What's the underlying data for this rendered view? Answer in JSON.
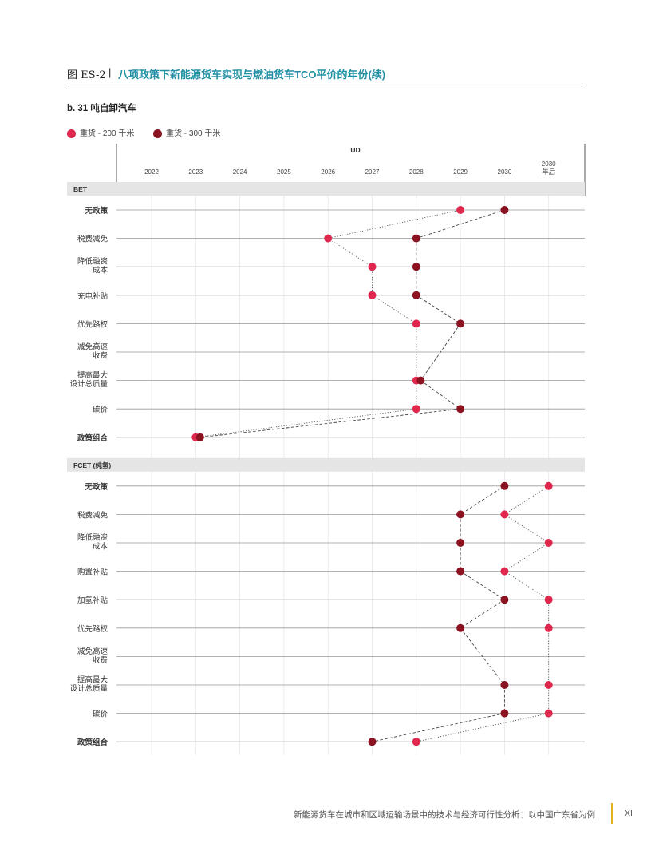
{
  "figure": {
    "label": "图 ES-2",
    "separator": "|",
    "title": "八项政策下新能源货车实现与燃油货车TCO平价的年份(续)"
  },
  "footer": {
    "text": "新能源货车在城市和区域运输场景中的技术与经济可行性分析：以中国广东省为例",
    "page": "XI"
  },
  "colors": {
    "series_200": "#e0284f",
    "series_300": "#8b1220",
    "section_band": "#e5e5e5",
    "title": "#1f8fa3",
    "footer_accent": "#e3b21c"
  },
  "chart_data": {
    "type": "scatter",
    "subtitle": "b. 31 吨自卸汽车",
    "x_axis_title": "UD",
    "x_categories": [
      "2022",
      "2023",
      "2024",
      "2025",
      "2026",
      "2027",
      "2028",
      "2029",
      "2030",
      "2030 年后"
    ],
    "legend": [
      {
        "name": "重货 - 200 千米",
        "color": "#e0284f"
      },
      {
        "name": "重货 - 300 千米",
        "color": "#8b1220"
      }
    ],
    "legend_placement": "top-left",
    "sections": [
      {
        "name": "BET",
        "rows": [
          {
            "label": [
              "无政策"
            ],
            "bold": true,
            "s200": 2029,
            "s300": 2030
          },
          {
            "label": [
              "税费减免"
            ],
            "bold": false,
            "s200": 2026,
            "s300": 2028
          },
          {
            "label": [
              "降低融资",
              "成本"
            ],
            "bold": false,
            "s200": 2027,
            "s300": 2028
          },
          {
            "label": [
              "充电补贴"
            ],
            "bold": false,
            "s200": 2027,
            "s300": 2028
          },
          {
            "label": [
              "优先路权"
            ],
            "bold": false,
            "s200": 2028,
            "s300": 2029
          },
          {
            "label": [
              "减免高速",
              "收费"
            ],
            "bold": false,
            "s200": null,
            "s300": null
          },
          {
            "label": [
              "提高最大",
              "设计总质量"
            ],
            "bold": false,
            "s200": 2028,
            "s300": 2028.1
          },
          {
            "label": [
              "碳价"
            ],
            "bold": false,
            "s200": 2028,
            "s300": 2029
          },
          {
            "label": [
              "政策组合"
            ],
            "bold": true,
            "s200": 2023,
            "s300": 2023.1
          }
        ]
      },
      {
        "name": "FCET (纯氢)",
        "rows": [
          {
            "label": [
              "无政策"
            ],
            "bold": true,
            "s200": 2031,
            "s300": 2030
          },
          {
            "label": [
              "税费减免"
            ],
            "bold": false,
            "s200": 2030,
            "s300": 2029
          },
          {
            "label": [
              "降低融资",
              "成本"
            ],
            "bold": false,
            "s200": 2031,
            "s300": 2029
          },
          {
            "label": [
              "购置补贴"
            ],
            "bold": false,
            "s200": 2030,
            "s300": 2029
          },
          {
            "label": [
              "加氢补贴"
            ],
            "bold": false,
            "s200": 2031,
            "s300": 2030
          },
          {
            "label": [
              "优先路权"
            ],
            "bold": false,
            "s200": 2031,
            "s300": 2029
          },
          {
            "label": [
              "减免高速",
              "收费"
            ],
            "bold": false,
            "s200": null,
            "s300": null
          },
          {
            "label": [
              "提高最大",
              "设计总质量"
            ],
            "bold": false,
            "s200": 2031,
            "s300": 2030
          },
          {
            "label": [
              "碳价"
            ],
            "bold": false,
            "s200": 2031,
            "s300": 2030
          },
          {
            "label": [
              "政策组合"
            ],
            "bold": true,
            "s200": 2028,
            "s300": 2027
          }
        ]
      }
    ]
  }
}
